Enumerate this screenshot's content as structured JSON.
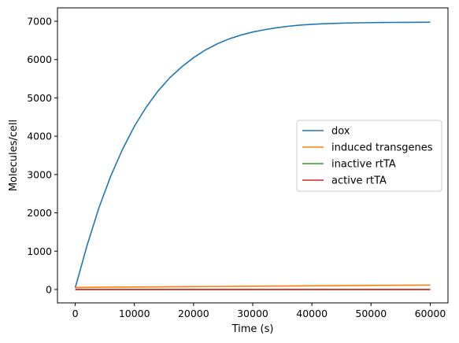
{
  "chart_data": {
    "type": "line",
    "title": "",
    "xlabel": "Time (s)",
    "ylabel": "Molecules/cell",
    "xlim": [
      -3000,
      63000
    ],
    "ylim": [
      -350,
      7350
    ],
    "xticks": [
      0,
      10000,
      20000,
      30000,
      40000,
      50000,
      60000
    ],
    "yticks": [
      0,
      1000,
      2000,
      3000,
      4000,
      5000,
      6000,
      7000
    ],
    "grid": false,
    "legend_position": "center-right",
    "series": [
      {
        "name": "dox",
        "color": "#1f77b4",
        "x": [
          0,
          2000,
          4000,
          6000,
          8000,
          10000,
          12000,
          14000,
          16000,
          18000,
          20000,
          22000,
          24000,
          26000,
          28000,
          30000,
          32000,
          34000,
          36000,
          38000,
          40000,
          42000,
          44000,
          46000,
          48000,
          50000,
          52000,
          54000,
          56000,
          58000,
          60000
        ],
        "y": [
          40,
          1150,
          2130,
          2960,
          3660,
          4260,
          4760,
          5180,
          5530,
          5810,
          6050,
          6250,
          6410,
          6540,
          6640,
          6720,
          6780,
          6830,
          6870,
          6900,
          6920,
          6935,
          6945,
          6955,
          6960,
          6965,
          6968,
          6970,
          6972,
          6973,
          6975
        ]
      },
      {
        "name": "induced transgenes",
        "color": "#ff7f0e",
        "x": [
          0,
          1000,
          10000,
          20000,
          30000,
          40000,
          50000,
          60000
        ],
        "y": [
          50,
          55,
          65,
          75,
          85,
          95,
          105,
          115
        ]
      },
      {
        "name": "inactive rtTA",
        "color": "#2ca02c",
        "x": [
          0,
          60000
        ],
        "y": [
          0,
          0
        ]
      },
      {
        "name": "active rtTA",
        "color": "#d62728",
        "x": [
          0,
          60000
        ],
        "y": [
          0,
          0
        ]
      }
    ]
  }
}
